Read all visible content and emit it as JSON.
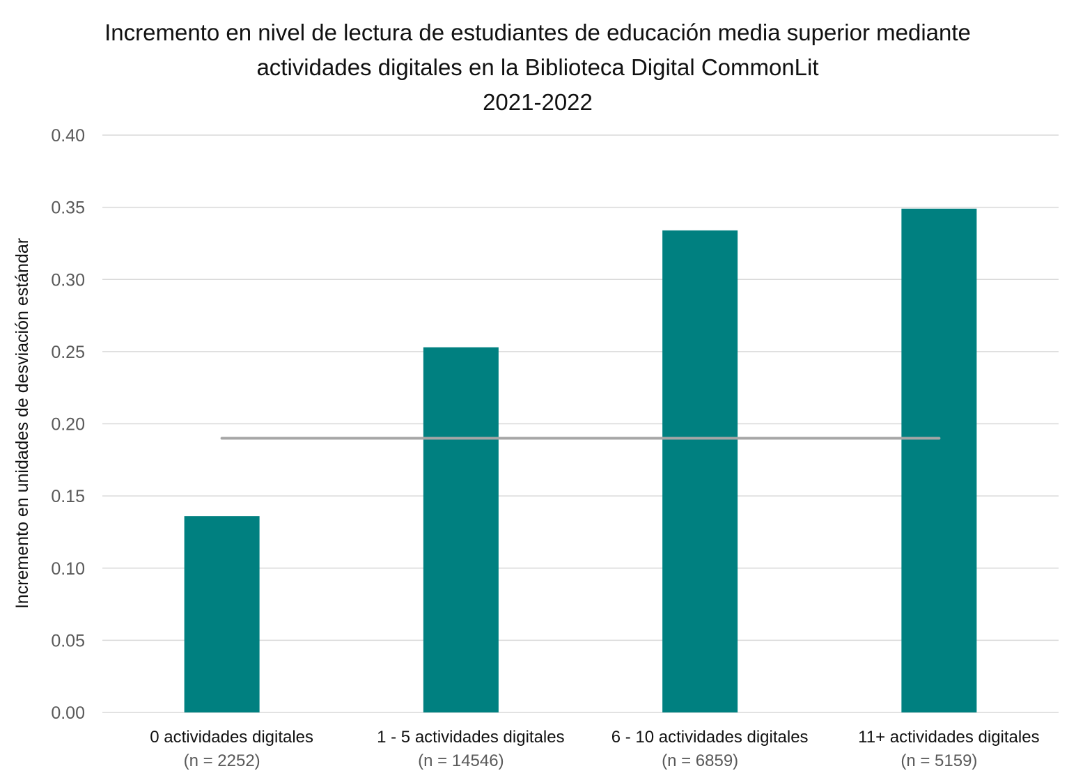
{
  "chart_data": {
    "type": "bar",
    "title": [
      "Incremento en nivel de lectura de estudiantes de educación media superior mediante",
      "actividades digitales en la Biblioteca Digital CommonLit",
      "2021-2022"
    ],
    "xlabel": "",
    "ylabel": "Incremento en unidades de desviación estándar",
    "ylim": [
      0,
      0.4
    ],
    "yticks": [
      "0.00",
      "0.05",
      "0.10",
      "0.15",
      "0.20",
      "0.25",
      "0.30",
      "0.35",
      "0.40"
    ],
    "grid": true,
    "categories": [
      "0  actividades digitales",
      "1 - 5 actividades digitales",
      "6 - 10 actividades digitales",
      "11+ actividades digitales"
    ],
    "category_n": [
      "(n = 2252)",
      "(n = 14546)",
      "(n = 6859)",
      "(n = 5159)"
    ],
    "values": [
      0.136,
      0.253,
      0.334,
      0.349
    ],
    "reference_line": 0.19,
    "colors": {
      "bar": "#008080",
      "reference_line": "#a6a6a6",
      "grid": "#d9d9d9"
    }
  }
}
